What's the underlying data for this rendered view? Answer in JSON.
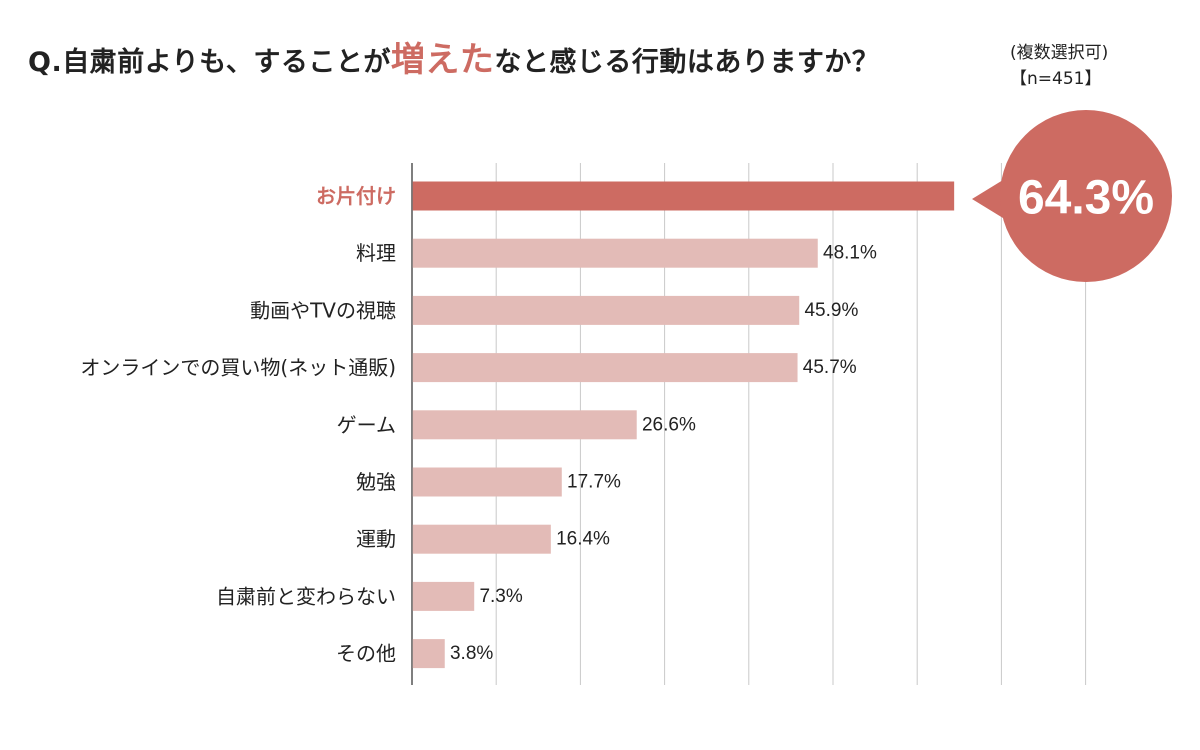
{
  "title": {
    "before": "Q.自粛前よりも、することが",
    "accent": "増えた",
    "after": "なと感じる行動はありますか？",
    "note": "(複数選択可)",
    "sample": "【n=451】"
  },
  "colors": {
    "highlight": "#cd6b62",
    "bar": "#e3bbb7",
    "grid": "#c9c9c9",
    "axis": "#555555",
    "text": "#222222"
  },
  "chart_data": {
    "type": "bar",
    "orientation": "horizontal",
    "categories": [
      "お片付け",
      "料理",
      "動画やTVの視聴",
      "オンラインでの買い物(ネット通販)",
      "ゲーム",
      "勉強",
      "運動",
      "自粛前と変わらない",
      "その他"
    ],
    "values": [
      64.3,
      48.1,
      45.9,
      45.7,
      26.6,
      17.7,
      16.4,
      7.3,
      3.8
    ],
    "value_labels": [
      "64.3%",
      "48.1%",
      "45.9%",
      "45.7%",
      "26.6%",
      "17.7%",
      "16.4%",
      "7.3%",
      "3.8%"
    ],
    "highlight_index": 0,
    "xlim": [
      0,
      80
    ],
    "grid_step": 10,
    "grid": true
  }
}
